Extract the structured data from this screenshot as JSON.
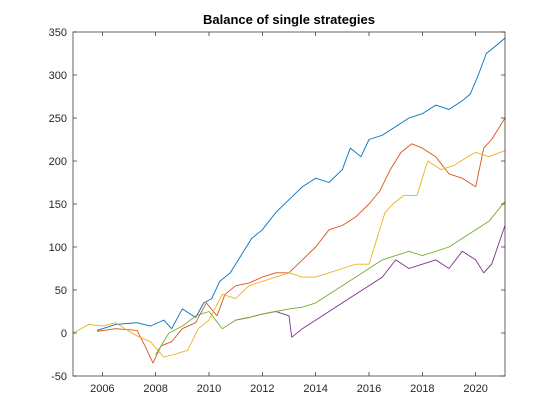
{
  "chart_data": {
    "type": "line",
    "title": "Balance of single strategies",
    "xlabel": "",
    "ylabel": "",
    "xlim": [
      2004.9,
      2021.1
    ],
    "ylim": [
      -50,
      350
    ],
    "xticks": [
      2006,
      2008,
      2010,
      2012,
      2014,
      2016,
      2018,
      2020
    ],
    "yticks": [
      -50,
      0,
      50,
      100,
      150,
      200,
      250,
      300,
      350
    ],
    "grid": false,
    "legend": "none",
    "series": [
      {
        "color": "#0072BD",
        "x": [
          2005.8,
          2006.5,
          2007.3,
          2007.8,
          2008.3,
          2008.6,
          2009.0,
          2009.5,
          2009.8,
          2010.1,
          2010.4,
          2010.8,
          2011.2,
          2011.6,
          2012.0,
          2012.5,
          2013.0,
          2013.5,
          2014.0,
          2014.5,
          2015.0,
          2015.3,
          2015.7,
          2016.0,
          2016.5,
          2017.0,
          2017.5,
          2018.0,
          2018.5,
          2019.0,
          2019.5,
          2019.8,
          2020.1,
          2020.4,
          2020.8,
          2021.1
        ],
        "y": [
          3,
          10,
          12,
          8,
          15,
          5,
          28,
          18,
          35,
          40,
          60,
          70,
          90,
          110,
          120,
          140,
          155,
          170,
          180,
          175,
          190,
          215,
          205,
          225,
          230,
          240,
          250,
          255,
          265,
          260,
          270,
          278,
          300,
          325,
          335,
          343
        ]
      },
      {
        "color": "#D95319",
        "x": [
          2005.8,
          2006.5,
          2007.3,
          2007.6,
          2007.9,
          2008.2,
          2008.6,
          2009.0,
          2009.5,
          2009.9,
          2010.3,
          2010.6,
          2011.0,
          2011.5,
          2012.0,
          2012.5,
          2013.0,
          2013.5,
          2014.0,
          2014.5,
          2015.0,
          2015.5,
          2016.0,
          2016.4,
          2016.8,
          2017.2,
          2017.6,
          2018.0,
          2018.5,
          2019.0,
          2019.5,
          2020.0,
          2020.3,
          2020.6,
          2021.1
        ],
        "y": [
          2,
          5,
          3,
          -15,
          -35,
          -15,
          -10,
          5,
          12,
          35,
          20,
          45,
          55,
          58,
          65,
          70,
          70,
          85,
          100,
          120,
          125,
          135,
          150,
          165,
          190,
          210,
          220,
          215,
          205,
          185,
          180,
          170,
          215,
          225,
          250
        ]
      },
      {
        "color": "#EDB120",
        "x": [
          2004.9,
          2005.5,
          2006.0,
          2006.5,
          2007.0,
          2007.4,
          2007.8,
          2008.3,
          2008.7,
          2009.2,
          2009.6,
          2010.0,
          2010.5,
          2011.0,
          2011.5,
          2012.0,
          2012.5,
          2013.0,
          2013.5,
          2014.0,
          2014.5,
          2015.0,
          2015.5,
          2016.0,
          2016.3,
          2016.6,
          2016.9,
          2017.3,
          2017.8,
          2018.2,
          2018.7,
          2019.2,
          2019.7,
          2020.0,
          2020.5,
          2021.1
        ],
        "y": [
          0,
          10,
          8,
          12,
          2,
          -5,
          -10,
          -28,
          -25,
          -20,
          5,
          15,
          45,
          40,
          55,
          60,
          65,
          70,
          65,
          65,
          70,
          75,
          80,
          80,
          110,
          140,
          150,
          160,
          160,
          200,
          190,
          195,
          205,
          210,
          205,
          212
        ]
      },
      {
        "color": "#7E2F8E",
        "x": [
          2011.0,
          2011.5,
          2012.0,
          2012.5,
          2013.0,
          2013.1,
          2013.5,
          2014.0,
          2014.5,
          2015.0,
          2015.5,
          2016.0,
          2016.5,
          2017.0,
          2017.5,
          2018.0,
          2018.5,
          2019.0,
          2019.5,
          2020.0,
          2020.3,
          2020.6,
          2021.1
        ],
        "y": [
          15,
          18,
          22,
          25,
          20,
          -5,
          5,
          15,
          25,
          35,
          45,
          55,
          65,
          85,
          75,
          80,
          85,
          75,
          95,
          85,
          70,
          80,
          125
        ]
      },
      {
        "color": "#77AC30",
        "x": [
          2008.0,
          2008.5,
          2009.0,
          2009.5,
          2010.0,
          2010.5,
          2011.0,
          2011.5,
          2012.0,
          2012.5,
          2013.0,
          2013.5,
          2014.0,
          2014.5,
          2015.0,
          2015.5,
          2016.0,
          2016.5,
          2017.0,
          2017.5,
          2018.0,
          2018.5,
          2019.0,
          2019.5,
          2020.0,
          2020.5,
          2021.1
        ],
        "y": [
          -25,
          0,
          8,
          20,
          25,
          5,
          15,
          18,
          22,
          25,
          28,
          30,
          35,
          45,
          55,
          65,
          75,
          85,
          90,
          95,
          90,
          95,
          100,
          110,
          120,
          130,
          153
        ]
      }
    ]
  }
}
